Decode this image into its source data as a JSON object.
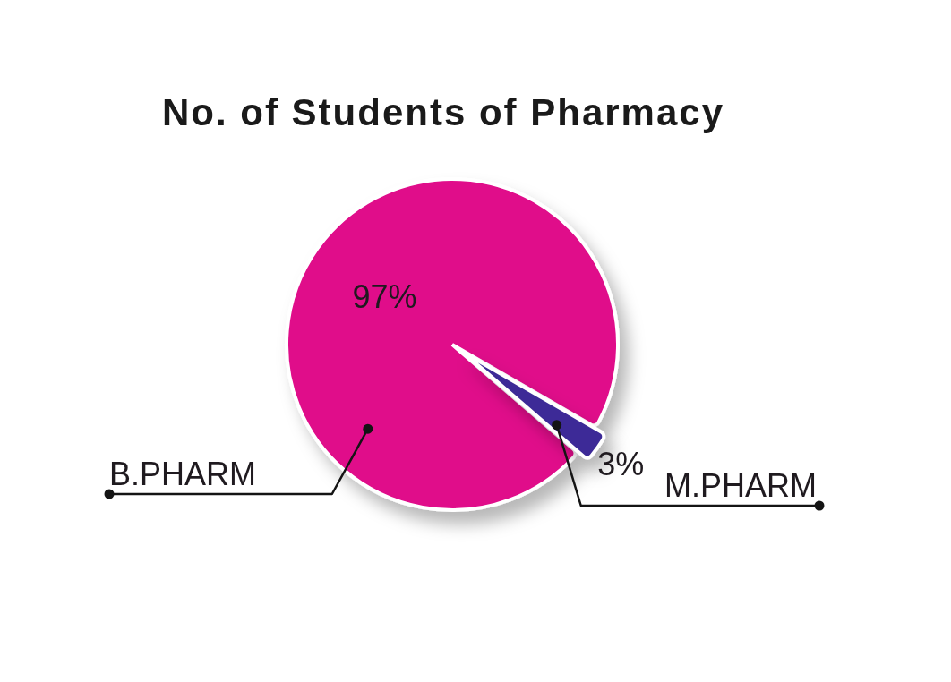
{
  "chart_data": {
    "type": "pie",
    "title": "No. of Students of Pharmacy",
    "categories": [
      "B.PHARM",
      "M.PHARM"
    ],
    "values": [
      97,
      3
    ],
    "colors": [
      "#e0098a",
      "#3d2c97"
    ],
    "value_labels": [
      "97%",
      "3%"
    ]
  }
}
